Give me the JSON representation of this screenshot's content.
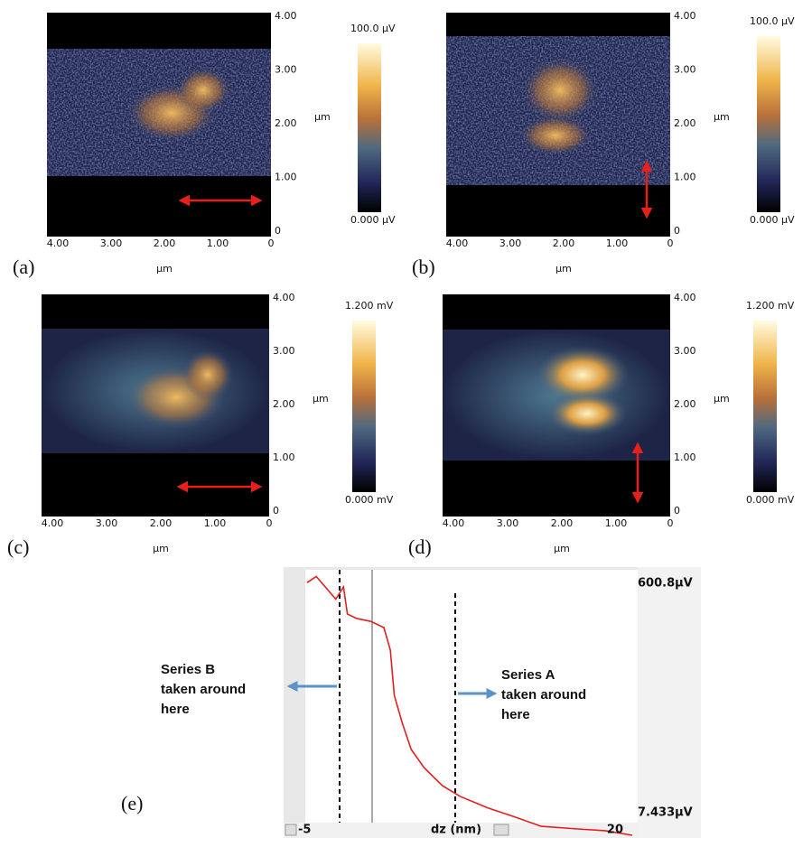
{
  "panels": [
    {
      "label": "(a)",
      "y_ticks": [
        "4.00",
        "3.00",
        "2.00",
        "1.00",
        "0"
      ],
      "y_unit": "µm",
      "x_ticks": [
        "4.00",
        "3.00",
        "2.00",
        "1.00",
        "0"
      ],
      "x_unit": "µm",
      "colorbar_max": "100.0 µV",
      "colorbar_min": "0.000 µV"
    },
    {
      "label": "(b)",
      "y_ticks": [
        "4.00",
        "3.00",
        "2.00",
        "1.00",
        "0"
      ],
      "y_unit": "µm",
      "x_ticks": [
        "4.00",
        "3.00",
        "2.00",
        "1.00",
        "0"
      ],
      "x_unit": "µm",
      "colorbar_max": "100.0 µV",
      "colorbar_min": "0.000 µV"
    },
    {
      "label": "(c)",
      "y_ticks": [
        "4.00",
        "3.00",
        "2.00",
        "1.00",
        "0"
      ],
      "y_unit": "µm",
      "x_ticks": [
        "4.00",
        "3.00",
        "2.00",
        "1.00",
        "0"
      ],
      "x_unit": "µm",
      "colorbar_max": "1.200 mV",
      "colorbar_min": "0.000 mV"
    },
    {
      "label": "(d)",
      "y_ticks": [
        "4.00",
        "3.00",
        "2.00",
        "1.00",
        "0"
      ],
      "y_unit": "µm",
      "x_ticks": [
        "4.00",
        "3.00",
        "2.00",
        "1.00",
        "0"
      ],
      "x_unit": "µm",
      "colorbar_max": "1.200 mV",
      "colorbar_min": "0.000 mV"
    }
  ],
  "chart_data": {
    "type": "line",
    "label": "(e)",
    "xlabel": "dz (nm)",
    "x": [
      -5,
      -4.3,
      -3.6,
      -2.8,
      -2.2,
      -1.9,
      -1.2,
      -0.1,
      0.9,
      1.4,
      1.7,
      2.3,
      3,
      4,
      5.4,
      6.8,
      8.9,
      11,
      13,
      15.8,
      17.9,
      20
    ],
    "values": [
      586,
      600,
      576,
      548,
      576,
      514,
      504,
      497,
      483,
      431,
      328,
      266,
      204,
      162,
      121,
      96,
      70,
      49,
      28,
      22,
      18,
      7.433
    ],
    "color": "#e02020",
    "xlim": [
      -5,
      20
    ],
    "xticks": [
      -5,
      20
    ],
    "ylim": [
      7.433,
      600.8
    ],
    "yticks": [
      {
        "value": 600.8,
        "label": "600.8µV"
      },
      {
        "value": 7.433,
        "label": "7.433µV"
      }
    ],
    "annotations": [
      {
        "lines": [
          "Series B",
          "taken around",
          "here"
        ]
      },
      {
        "lines": [
          "Series A",
          "taken around",
          "here"
        ]
      }
    ]
  }
}
